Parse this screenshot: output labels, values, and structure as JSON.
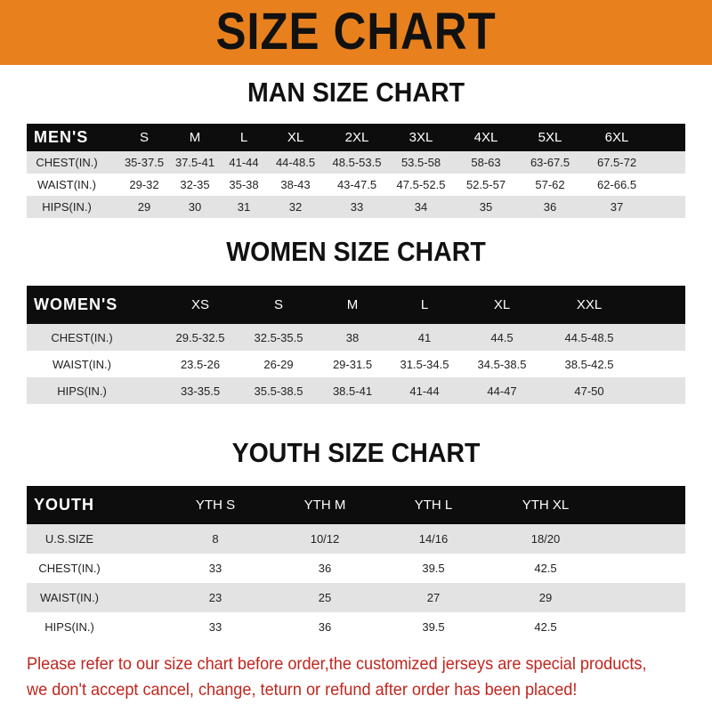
{
  "title": "SIZE CHART",
  "colors": {
    "banner": "#E8811D",
    "header_row": "#0d0d0d",
    "stripe": "#e3e3e3",
    "footer_text": "#c0261e"
  },
  "men": {
    "title": "MAN SIZE CHART",
    "header": [
      "MEN'S",
      "S",
      "M",
      "L",
      "XL",
      "2XL",
      "3XL",
      "4XL",
      "5XL",
      "6XL"
    ],
    "rows": [
      [
        "CHEST(IN.)",
        "35-37.5",
        "37.5-41",
        "41-44",
        "44-48.5",
        "48.5-53.5",
        "53.5-58",
        "58-63",
        "63-67.5",
        "67.5-72"
      ],
      [
        "WAIST(IN.)",
        "29-32",
        "32-35",
        "35-38",
        "38-43",
        "43-47.5",
        "47.5-52.5",
        "52.5-57",
        "57-62",
        "62-66.5"
      ],
      [
        "HIPS(IN.)",
        "29",
        "30",
        "31",
        "32",
        "33",
        "34",
        "35",
        "36",
        "37"
      ]
    ]
  },
  "women": {
    "title": "WOMEN SIZE CHART",
    "header": [
      "WOMEN'S",
      "XS",
      "S",
      "M",
      "L",
      "XL",
      "XXL"
    ],
    "rows": [
      [
        "CHEST(IN.)",
        "29.5-32.5",
        "32.5-35.5",
        "38",
        "41",
        "44.5",
        "44.5-48.5"
      ],
      [
        "WAIST(IN.)",
        "23.5-26",
        "26-29",
        "29-31.5",
        "31.5-34.5",
        "34.5-38.5",
        "38.5-42.5"
      ],
      [
        "HIPS(IN.)",
        "33-35.5",
        "35.5-38.5",
        "38.5-41",
        "41-44",
        "44-47",
        "47-50"
      ]
    ]
  },
  "youth": {
    "title": "YOUTH SIZE CHART",
    "header": [
      "YOUTH",
      "YTH S",
      "YTH M",
      "YTH L",
      "YTH XL"
    ],
    "rows": [
      [
        "U.S.SIZE",
        "8",
        "10/12",
        "14/16",
        "18/20"
      ],
      [
        "CHEST(IN.)",
        "33",
        "36",
        "39.5",
        "42.5"
      ],
      [
        "WAIST(IN.)",
        "23",
        "25",
        "27",
        "29"
      ],
      [
        "HIPS(IN.)",
        "33",
        "36",
        "39.5",
        "42.5"
      ]
    ]
  },
  "footer": {
    "line1": "Please refer to our size chart before order,the customized jerseys are special products,",
    "line2": "we don't accept cancel, change, teturn or refund after order has been placed!"
  }
}
